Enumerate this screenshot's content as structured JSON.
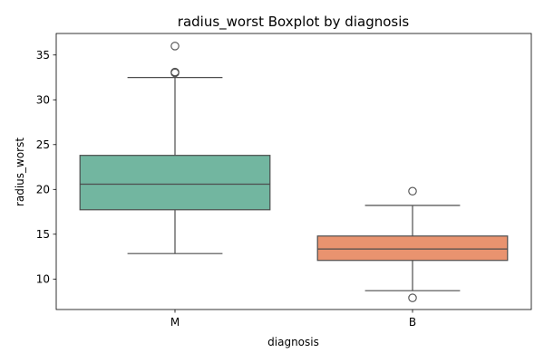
{
  "chart_data": {
    "type": "boxplot",
    "title": "radius_worst Boxplot by diagnosis",
    "xlabel": "diagnosis",
    "ylabel": "radius_worst",
    "categories": [
      "M",
      "B"
    ],
    "ylim": [
      6.6,
      37.4
    ],
    "yticks": [
      10,
      15,
      20,
      25,
      30,
      35
    ],
    "grid": false,
    "boxes": [
      {
        "category": "M",
        "whisker_low": 12.84,
        "q1": 17.73,
        "median": 20.59,
        "q3": 23.8,
        "whisker_high": 32.49,
        "outliers": [
          33.0,
          33.1,
          36.0
        ],
        "color": "#72b6a0"
      },
      {
        "category": "B",
        "whisker_low": 8.7,
        "q1": 12.08,
        "median": 13.35,
        "q3": 14.8,
        "whisker_high": 18.21,
        "outliers": [
          19.8,
          7.9
        ],
        "color": "#e9936f"
      }
    ]
  }
}
